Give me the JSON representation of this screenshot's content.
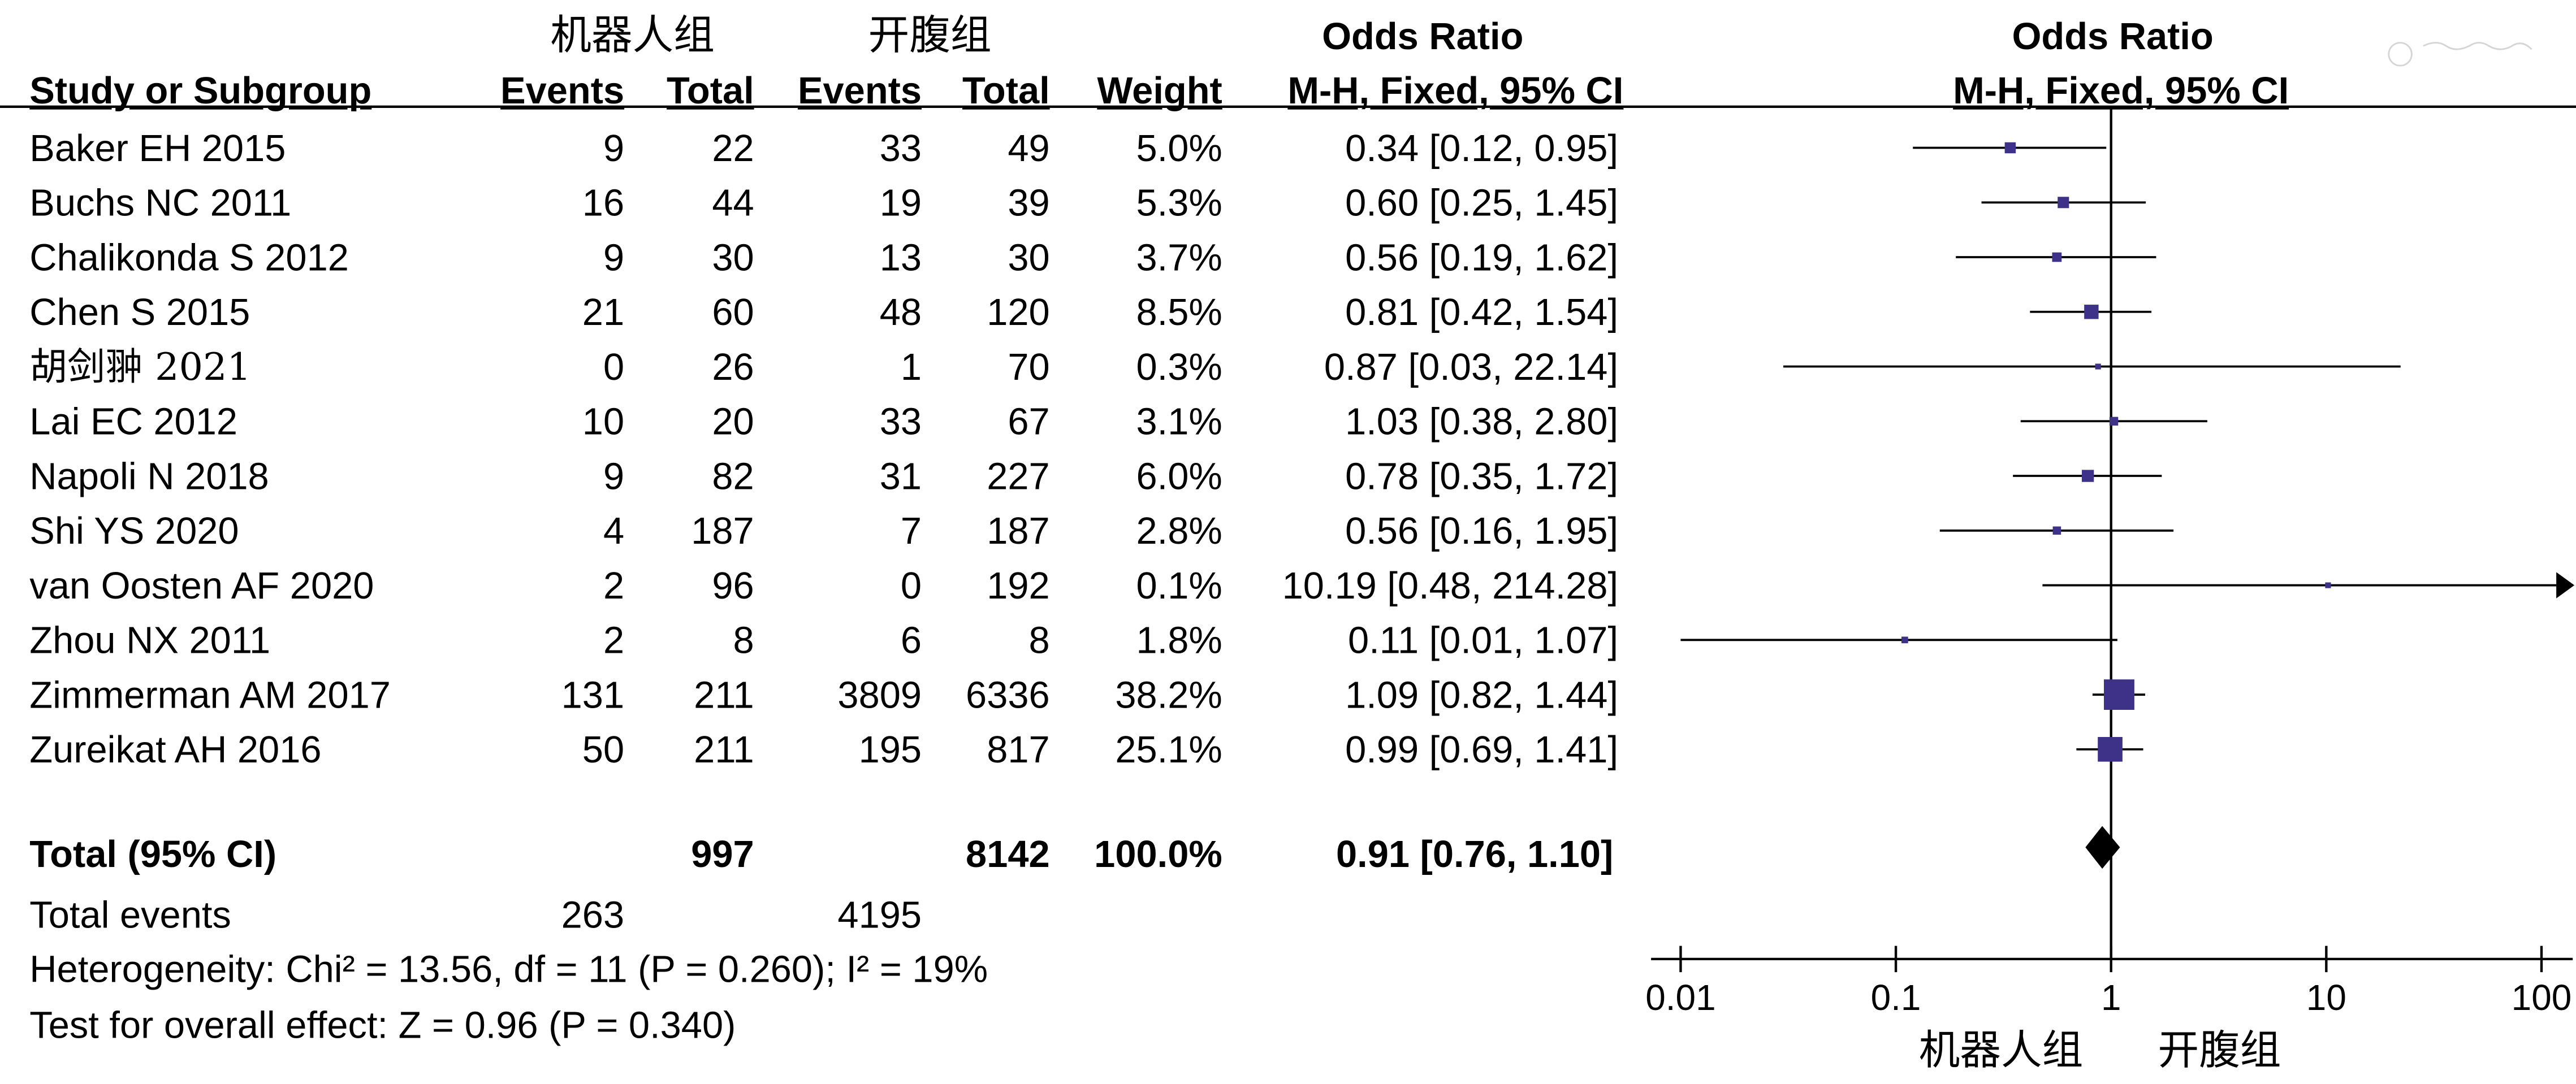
{
  "header": {
    "group1": "机器人组",
    "group2": "开腹组",
    "col_study": "Study or Subgroup",
    "col_events1": "Events",
    "col_total1": "Total",
    "col_events2": "Events",
    "col_total2": "Total",
    "col_weight": "Weight",
    "col_or_title": "Odds Ratio",
    "col_or_method": "M-H, Fixed, 95% CI",
    "plot_title": "Odds Ratio",
    "plot_method": "M-H, Fixed, 95% CI"
  },
  "rows": [
    {
      "study": "Baker EH 2015",
      "e1": "9",
      "t1": "22",
      "e2": "33",
      "t2": "49",
      "weight": "5.0%",
      "or_text": "0.34 [0.12, 0.95]"
    },
    {
      "study": "Buchs NC 2011",
      "e1": "16",
      "t1": "44",
      "e2": "19",
      "t2": "39",
      "weight": "5.3%",
      "or_text": "0.60 [0.25, 1.45]"
    },
    {
      "study": "Chalikonda S 2012",
      "e1": "9",
      "t1": "30",
      "e2": "13",
      "t2": "30",
      "weight": "3.7%",
      "or_text": "0.56 [0.19, 1.62]"
    },
    {
      "study": "Chen S 2015",
      "e1": "21",
      "t1": "60",
      "e2": "48",
      "t2": "120",
      "weight": "8.5%",
      "or_text": "0.81 [0.42, 1.54]"
    },
    {
      "study": "胡剑翀 2021",
      "e1": "0",
      "t1": "26",
      "e2": "1",
      "t2": "70",
      "weight": "0.3%",
      "or_text": "0.87 [0.03, 22.14]"
    },
    {
      "study": "Lai EC 2012",
      "e1": "10",
      "t1": "20",
      "e2": "33",
      "t2": "67",
      "weight": "3.1%",
      "or_text": "1.03 [0.38, 2.80]"
    },
    {
      "study": "Napoli N 2018",
      "e1": "9",
      "t1": "82",
      "e2": "31",
      "t2": "227",
      "weight": "6.0%",
      "or_text": "0.78 [0.35, 1.72]"
    },
    {
      "study": "Shi YS 2020",
      "e1": "4",
      "t1": "187",
      "e2": "7",
      "t2": "187",
      "weight": "2.8%",
      "or_text": "0.56 [0.16, 1.95]"
    },
    {
      "study": "van Oosten AF 2020",
      "e1": "2",
      "t1": "96",
      "e2": "0",
      "t2": "192",
      "weight": "0.1%",
      "or_text": "10.19 [0.48, 214.28]"
    },
    {
      "study": "Zhou NX 2011",
      "e1": "2",
      "t1": "8",
      "e2": "6",
      "t2": "8",
      "weight": "1.8%",
      "or_text": "0.11 [0.01, 1.07]"
    },
    {
      "study": "Zimmerman AM 2017",
      "e1": "131",
      "t1": "211",
      "e2": "3809",
      "t2": "6336",
      "weight": "38.2%",
      "or_text": "1.09 [0.82, 1.44]"
    },
    {
      "study": "Zureikat AH 2016",
      "e1": "50",
      "t1": "211",
      "e2": "195",
      "t2": "817",
      "weight": "25.1%",
      "or_text": "0.99 [0.69, 1.41]"
    }
  ],
  "total": {
    "label": "Total (95% CI)",
    "t1": "997",
    "t2": "8142",
    "weight": "100.0%",
    "or_text": "0.91 [0.76, 1.10]"
  },
  "events": {
    "label": "Total events",
    "e1": "263",
    "e2": "4195"
  },
  "heterogeneity": "Heterogeneity: Chi² = 13.56, df = 11 (P = 0.260); I² = 19%",
  "overall_effect": "Test for overall effect: Z = 0.96 (P = 0.340)",
  "axis": {
    "ticks": [
      "0.01",
      "0.1",
      "1",
      "10",
      "100"
    ],
    "label_left": "机器人组",
    "label_right": "开腹组"
  },
  "colors": {
    "marker": "#3d3288",
    "line": "#000000",
    "diamond": "#000000"
  },
  "chart_data": {
    "type": "forest",
    "x_scale": "log",
    "xlim": [
      0.01,
      100
    ],
    "reference_line": 1,
    "measure": "Odds Ratio",
    "studies": [
      {
        "name": "Baker EH 2015",
        "or": 0.34,
        "lo": 0.12,
        "hi": 0.95,
        "weight": 5.0
      },
      {
        "name": "Buchs NC 2011",
        "or": 0.6,
        "lo": 0.25,
        "hi": 1.45,
        "weight": 5.3
      },
      {
        "name": "Chalikonda S 2012",
        "or": 0.56,
        "lo": 0.19,
        "hi": 1.62,
        "weight": 3.7
      },
      {
        "name": "Chen S 2015",
        "or": 0.81,
        "lo": 0.42,
        "hi": 1.54,
        "weight": 8.5
      },
      {
        "name": "胡剑翀 2021",
        "or": 0.87,
        "lo": 0.03,
        "hi": 22.14,
        "weight": 0.3
      },
      {
        "name": "Lai EC 2012",
        "or": 1.03,
        "lo": 0.38,
        "hi": 2.8,
        "weight": 3.1
      },
      {
        "name": "Napoli N 2018",
        "or": 0.78,
        "lo": 0.35,
        "hi": 1.72,
        "weight": 6.0
      },
      {
        "name": "Shi YS 2020",
        "or": 0.56,
        "lo": 0.16,
        "hi": 1.95,
        "weight": 2.8
      },
      {
        "name": "van Oosten AF 2020",
        "or": 10.19,
        "lo": 0.48,
        "hi": 214.28,
        "weight": 0.1
      },
      {
        "name": "Zhou NX 2011",
        "or": 0.11,
        "lo": 0.01,
        "hi": 1.07,
        "weight": 1.8
      },
      {
        "name": "Zimmerman AM 2017",
        "or": 1.09,
        "lo": 0.82,
        "hi": 1.44,
        "weight": 38.2
      },
      {
        "name": "Zureikat AH 2016",
        "or": 0.99,
        "lo": 0.69,
        "hi": 1.41,
        "weight": 25.1
      }
    ],
    "pooled": {
      "or": 0.91,
      "lo": 0.76,
      "hi": 1.1
    }
  }
}
